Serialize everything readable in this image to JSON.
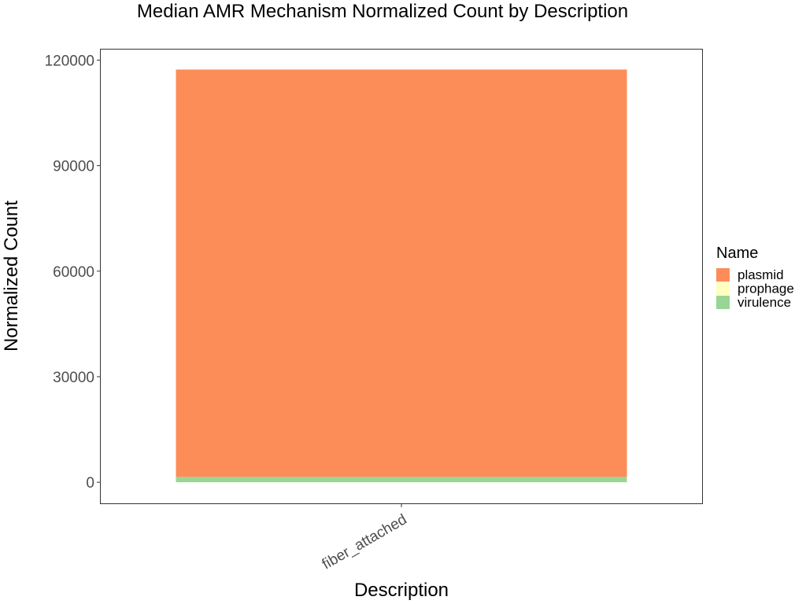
{
  "chart_data": {
    "type": "bar",
    "stacked": true,
    "title": "Median AMR Mechanism Normalized Count by Description",
    "xlabel": "Description",
    "ylabel": "Normalized Count",
    "categories": [
      "fiber_attached"
    ],
    "ylim": [
      -6000,
      123000
    ],
    "yticks": [
      0,
      30000,
      60000,
      90000,
      120000
    ],
    "yticklabels": [
      "0",
      "30000",
      "60000",
      "90000",
      "120000"
    ],
    "grid": false,
    "legend": {
      "title": "Name",
      "position": "right",
      "entries": [
        {
          "name": "plasmid",
          "color": "#FC8D59"
        },
        {
          "name": "prophage",
          "color": "#FFFFBF"
        },
        {
          "name": "virulence",
          "color": "#99D594"
        }
      ]
    },
    "series": [
      {
        "name": "virulence",
        "color": "#99D594",
        "values": [
          1500
        ]
      },
      {
        "name": "prophage",
        "color": "#FFFFBF",
        "values": [
          20
        ]
      },
      {
        "name": "plasmid",
        "color": "#FC8D59",
        "values": [
          115800
        ]
      }
    ]
  }
}
